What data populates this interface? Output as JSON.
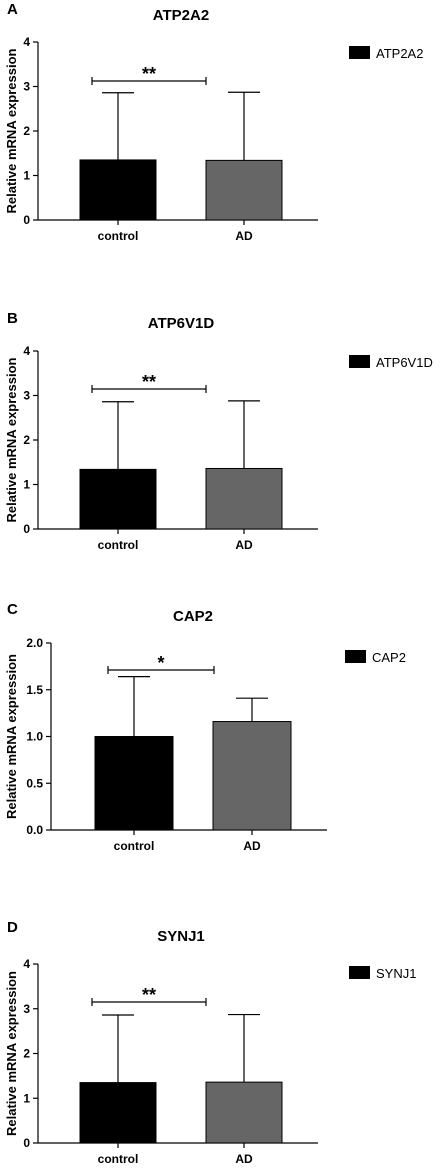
{
  "chart_data": [
    {
      "type": "bar",
      "panel": "A",
      "title": "ATP2A2",
      "ylabel": "Relative mRNA expression",
      "xlabel": "",
      "categories": [
        "control",
        "AD"
      ],
      "series": [
        {
          "name": "ATP2A2",
          "values": [
            1.35,
            1.34
          ]
        }
      ],
      "error_upper": [
        2.86,
        2.87
      ],
      "ylim": [
        0,
        4
      ],
      "yticks": [
        "0",
        "1",
        "2",
        "3",
        "4"
      ],
      "significance": "**",
      "bar_colors": [
        "#000000",
        "#666666"
      ],
      "legend": {
        "label": "ATP2A2",
        "placement": "right"
      }
    },
    {
      "type": "bar",
      "panel": "B",
      "title": "ATP6V1D",
      "ylabel": "Relative mRNA expression",
      "xlabel": "",
      "categories": [
        "control",
        "AD"
      ],
      "series": [
        {
          "name": "ATP6V1D",
          "values": [
            1.34,
            1.36
          ]
        }
      ],
      "error_upper": [
        2.86,
        2.88
      ],
      "ylim": [
        0,
        4
      ],
      "yticks": [
        "0",
        "1",
        "2",
        "3",
        "4"
      ],
      "significance": "**",
      "bar_colors": [
        "#000000",
        "#666666"
      ],
      "legend": {
        "label": "ATP6V1D",
        "placement": "right"
      }
    },
    {
      "type": "bar",
      "panel": "C",
      "title": "CAP2",
      "ylabel": "Relative mRNA expression",
      "xlabel": "",
      "categories": [
        "control",
        "AD"
      ],
      "series": [
        {
          "name": "CAP2",
          "values": [
            1.0,
            1.16
          ]
        }
      ],
      "error_upper": [
        1.64,
        1.41
      ],
      "ylim": [
        0,
        2.0
      ],
      "yticks": [
        "0.0",
        "0.5",
        "1.0",
        "1.5",
        "2.0"
      ],
      "significance": "*",
      "bar_colors": [
        "#000000",
        "#666666"
      ],
      "legend": {
        "label": "CAP2",
        "placement": "right"
      }
    },
    {
      "type": "bar",
      "panel": "D",
      "title": "SYNJ1",
      "ylabel": "Relative mRNA expression",
      "xlabel": "",
      "categories": [
        "control",
        "AD"
      ],
      "series": [
        {
          "name": "SYNJ1",
          "values": [
            1.35,
            1.36
          ]
        }
      ],
      "error_upper": [
        2.86,
        2.87
      ],
      "ylim": [
        0,
        4
      ],
      "yticks": [
        "0",
        "1",
        "2",
        "3",
        "4"
      ],
      "significance": "**",
      "bar_colors": [
        "#000000",
        "#666666"
      ],
      "legend": {
        "label": "SYNJ1",
        "placement": "right"
      }
    }
  ]
}
